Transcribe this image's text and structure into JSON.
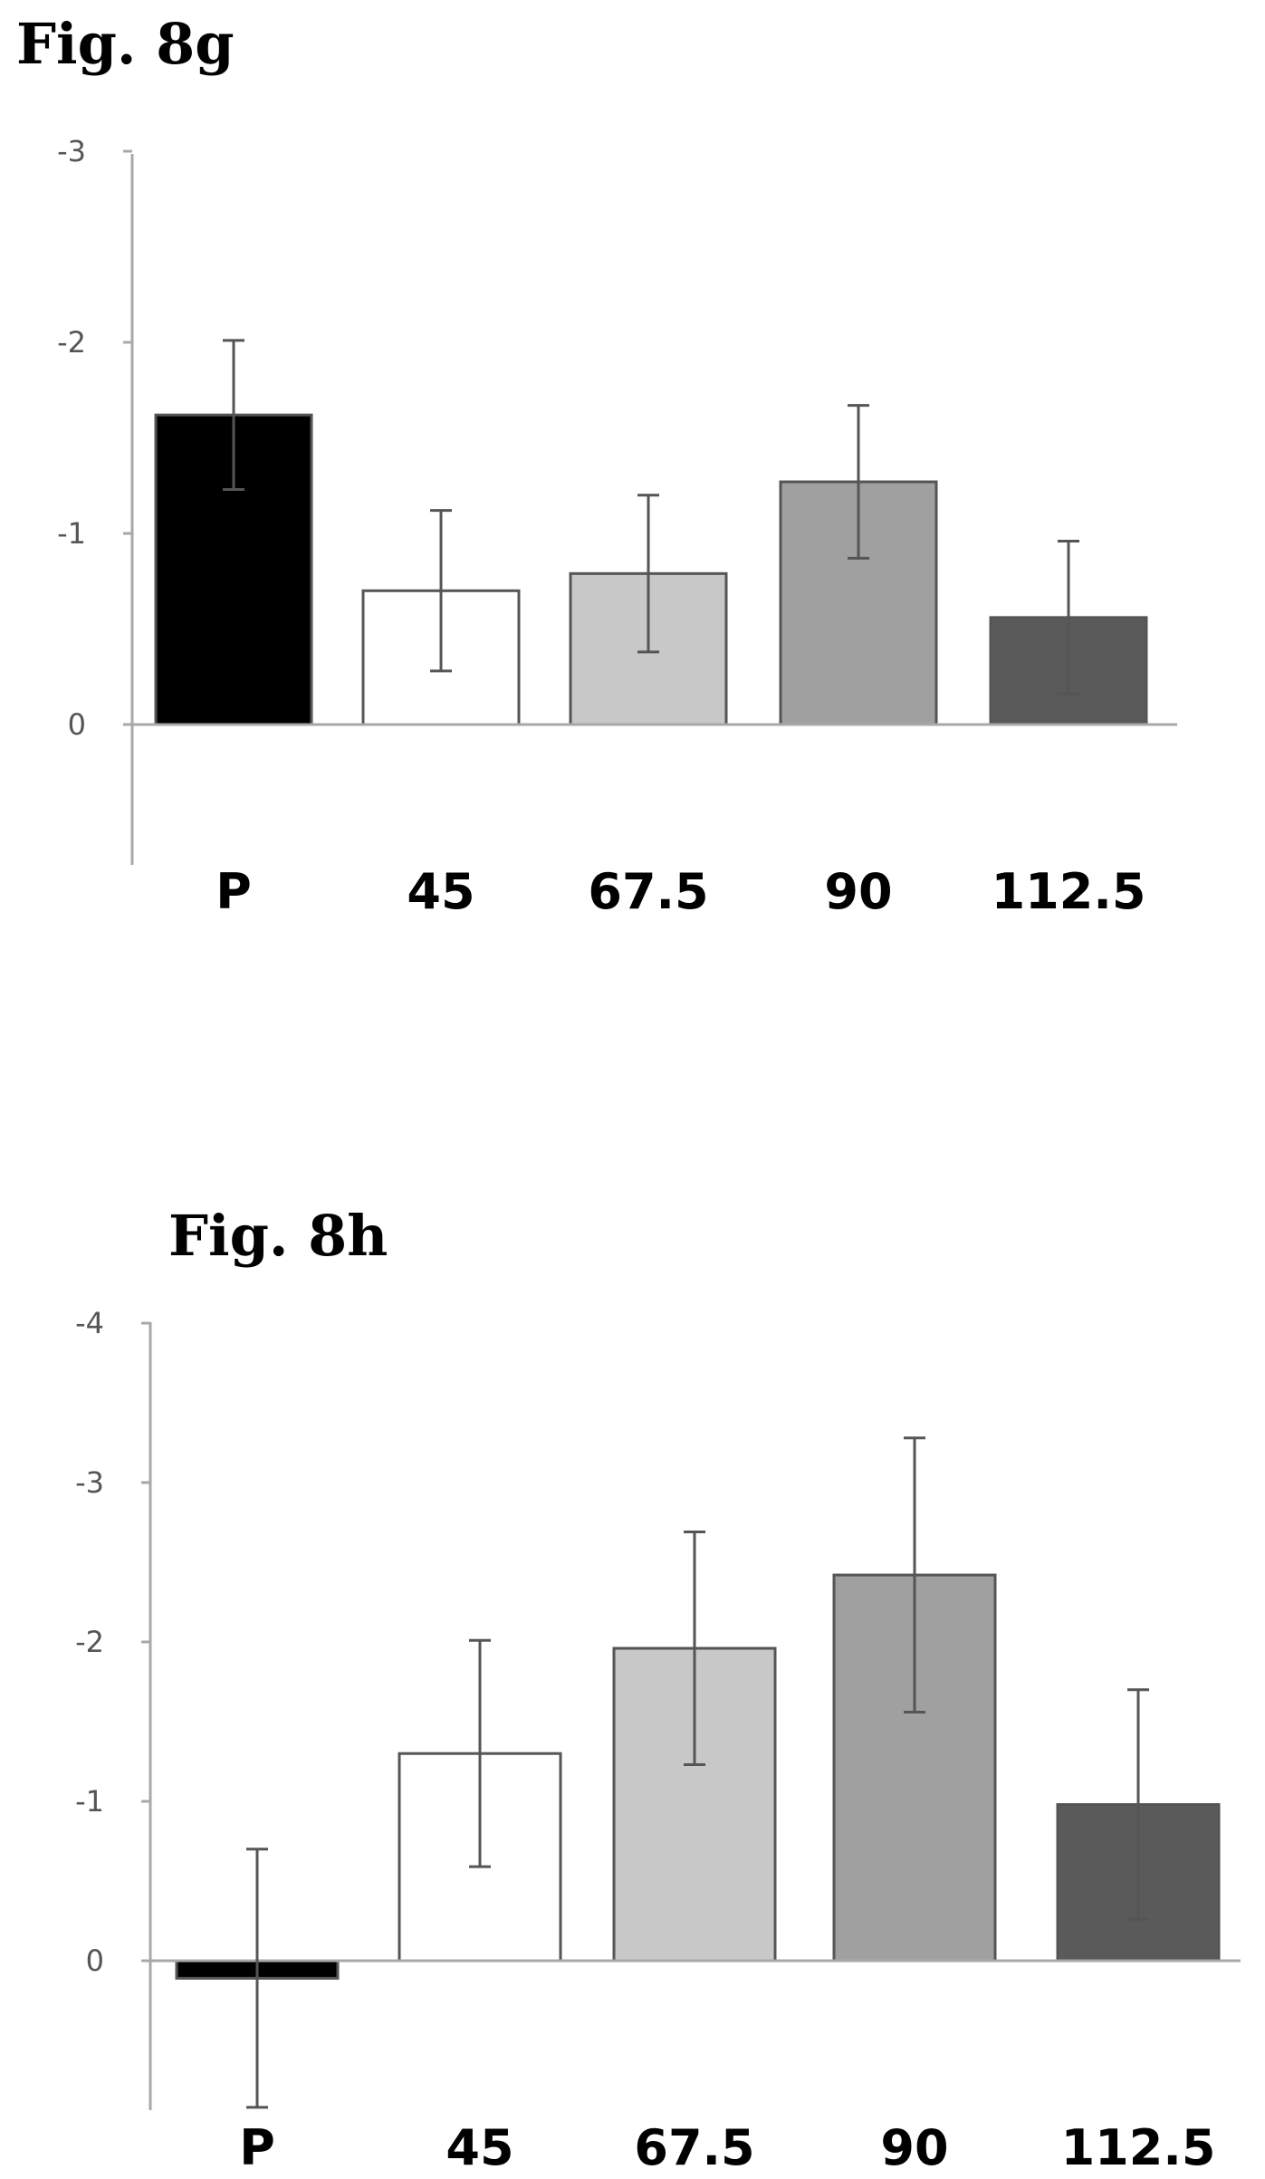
{
  "chart_data": [
    {
      "type": "bar",
      "title": "Fig. 8g",
      "categories": [
        "P",
        "45",
        "67.5",
        "90",
        "112.5"
      ],
      "values": [
        -1.62,
        -0.7,
        -0.79,
        -1.27,
        -0.56
      ],
      "error": [
        0.39,
        0.42,
        0.41,
        0.4,
        0.4
      ],
      "yticks": [
        "-3",
        "-2",
        "-1",
        "0"
      ],
      "ytick_values": [
        -3,
        -2,
        -1,
        0
      ],
      "ylim": [
        0.75,
        -3
      ],
      "ylabel": "",
      "xlabel": "",
      "grid": false,
      "colors": [
        "#000000",
        "#ffffff",
        "#c8c8c8",
        "#a0a0a0",
        "#5a5a5a"
      ]
    },
    {
      "type": "bar",
      "title": "Fig. 8h",
      "categories": [
        "P",
        "45",
        "67.5",
        "90",
        "112.5"
      ],
      "values": [
        0.11,
        -1.3,
        -1.96,
        -2.42,
        -0.98
      ],
      "error": [
        0.81,
        0.71,
        0.73,
        0.86,
        0.72
      ],
      "yticks": [
        "-4",
        "-3",
        "-2",
        "-1",
        "0"
      ],
      "ytick_values": [
        -4,
        -3,
        -2,
        -1,
        0
      ],
      "ylim": [
        0.75,
        -4
      ],
      "ylabel": "",
      "xlabel": "",
      "grid": false,
      "colors": [
        "#000000",
        "#ffffff",
        "#c8c8c8",
        "#a0a0a0",
        "#5a5a5a"
      ]
    }
  ]
}
